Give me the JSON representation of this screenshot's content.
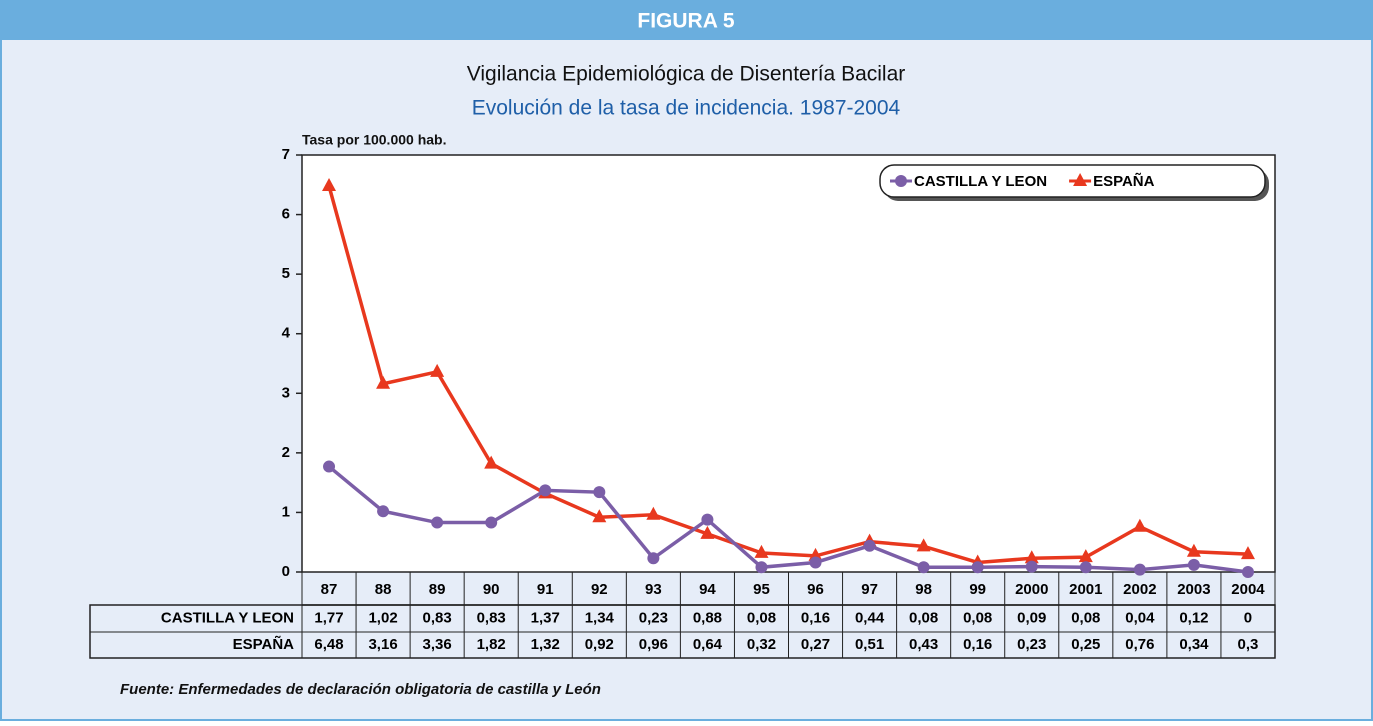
{
  "header": "FIGURA 5",
  "chart_data": {
    "type": "line",
    "title": "Vigilancia Epidemiológica de Disentería Bacilar",
    "subtitle": "Evolución de la tasa de incidencia. 1987-2004",
    "ylabel": "Tasa por 100.000 hab.",
    "categories": [
      "87",
      "88",
      "89",
      "90",
      "91",
      "92",
      "93",
      "94",
      "95",
      "96",
      "97",
      "98",
      "99",
      "2000",
      "2001",
      "2002",
      "2003",
      "2004"
    ],
    "series": [
      {
        "name": "CASTILLA Y LEON",
        "color": "#7b5ea7",
        "marker": "circle",
        "values": [
          1.77,
          1.02,
          0.83,
          0.83,
          1.37,
          1.34,
          0.23,
          0.88,
          0.08,
          0.16,
          0.44,
          0.08,
          0.08,
          0.09,
          0.08,
          0.04,
          0.12,
          0
        ],
        "value_labels": [
          "1,77",
          "1,02",
          "0,83",
          "0,83",
          "1,37",
          "1,34",
          "0,23",
          "0,88",
          "0,08",
          "0,16",
          "0,44",
          "0,08",
          "0,08",
          "0,09",
          "0,08",
          "0,04",
          "0,12",
          "0"
        ]
      },
      {
        "name": "ESPAÑA",
        "color": "#e8381e",
        "marker": "triangle",
        "values": [
          6.48,
          3.16,
          3.36,
          1.82,
          1.32,
          0.92,
          0.96,
          0.64,
          0.32,
          0.27,
          0.51,
          0.43,
          0.16,
          0.23,
          0.25,
          0.76,
          0.34,
          0.3
        ],
        "value_labels": [
          "6,48",
          "3,16",
          "3,36",
          "1,82",
          "1,32",
          "0,92",
          "0,96",
          "0,64",
          "0,32",
          "0,27",
          "0,51",
          "0,43",
          "0,16",
          "0,23",
          "0,25",
          "0,76",
          "0,34",
          "0,3"
        ]
      }
    ],
    "ylim": [
      0,
      7
    ],
    "yticks": [
      0,
      1,
      2,
      3,
      4,
      5,
      6,
      7
    ],
    "legend": "top-right"
  },
  "footer": "Fuente: Enfermedades de declaración obligatoria de castilla y León"
}
